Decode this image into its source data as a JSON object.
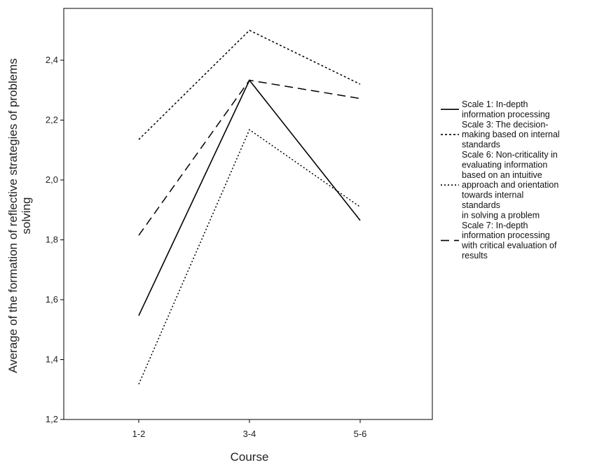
{
  "chart_data": {
    "type": "line",
    "categories": [
      "1-2",
      "3-4",
      "5-6"
    ],
    "xlabel": "Course",
    "ylabel": "Average of the formation of reflective strategies of problems solving",
    "ylabel_lines": [
      "Average of the formation of reflective strategies of problems",
      "solving"
    ],
    "ylim": [
      1.2,
      2.55
    ],
    "yticks": [
      1.2,
      1.4,
      1.6,
      1.8,
      2.0,
      2.2,
      2.4
    ],
    "ytick_labels": [
      "1,2",
      "1,4",
      "1,6",
      "1,8",
      "2,0",
      "2,2",
      "2,4"
    ],
    "grid": false,
    "legend_position": "right",
    "series": [
      {
        "name": "Scale 1: In-depth information processing",
        "legend_lines": [
          "Scale 1: In-depth",
          "information processing"
        ],
        "style": "solid",
        "color": "#000000",
        "values": [
          1.547,
          2.333,
          1.865
        ]
      },
      {
        "name": "Scale 3: The decision-making based on internal standards",
        "legend_lines": [
          "Scale 3: The decision-",
          "making based on internal",
          "standards"
        ],
        "style": "short-dash",
        "color": "#000000",
        "values": [
          2.135,
          2.5,
          2.32
        ]
      },
      {
        "name": "Scale 6: Non-criticality in evaluating information based on an intuitive approach and orientation towards internal standards in solving a problem",
        "legend_lines": [
          "Scale 6: Non-criticality in",
          "evaluating information",
          "based on an intuitive",
          "approach and orientation",
          "towards internal",
          "standards",
          "in solving a problem"
        ],
        "style": "dotted",
        "color": "#000000",
        "values": [
          1.318,
          2.168,
          1.91
        ]
      },
      {
        "name": "Scale 7: In-depth information processing with critical evaluation of results",
        "legend_lines": [
          "Scale 7: In-depth",
          "information processing",
          "with critical evaluation of",
          "results"
        ],
        "style": "long-dash",
        "color": "#000000",
        "values": [
          1.815,
          2.333,
          2.272
        ]
      }
    ]
  }
}
